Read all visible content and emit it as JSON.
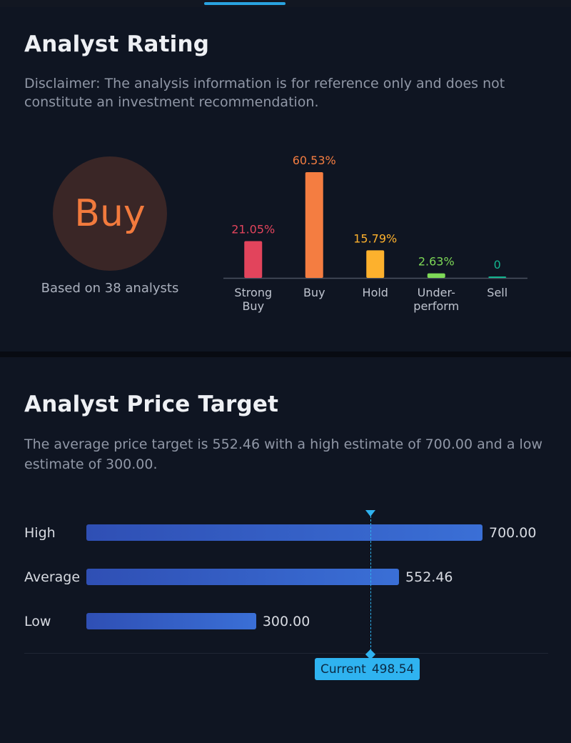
{
  "rating": {
    "title": "Analyst Rating",
    "disclaimer": "Disclaimer: The analysis information is for reference only and does not constitute an investment recommendation.",
    "consensus": "Buy",
    "basis": "Based on 38 analysts"
  },
  "chart_data": {
    "type": "bar",
    "categories": [
      "Strong Buy",
      "Buy",
      "Hold",
      "Under-perform",
      "Sell"
    ],
    "category_lines": [
      [
        "Strong",
        "Buy"
      ],
      [
        "Buy"
      ],
      [
        "Hold"
      ],
      [
        "Under-",
        "perform"
      ],
      [
        "Sell"
      ]
    ],
    "values": [
      21.05,
      60.53,
      15.79,
      2.63,
      0
    ],
    "value_labels": [
      "21.05%",
      "60.53%",
      "15.79%",
      "2.63%",
      "0"
    ],
    "colors": [
      "#e2445c",
      "#f47d41",
      "#fdb12d",
      "#7ed957",
      "#13b58f"
    ],
    "ylim": [
      0,
      60.53
    ]
  },
  "price_target": {
    "title": "Analyst Price Target",
    "description": "The average price target is 552.46 with a high estimate of 700.00 and a low estimate of 300.00.",
    "rows": [
      {
        "label": "High",
        "value": "700.00",
        "amount": 700.0
      },
      {
        "label": "Average",
        "value": "552.46",
        "amount": 552.46
      },
      {
        "label": "Low",
        "value": "300.00",
        "amount": 300.0
      }
    ],
    "current_label": "Current",
    "current_value": "498.54",
    "current_amount": 498.54,
    "accent_color": "#2fb3f0"
  }
}
